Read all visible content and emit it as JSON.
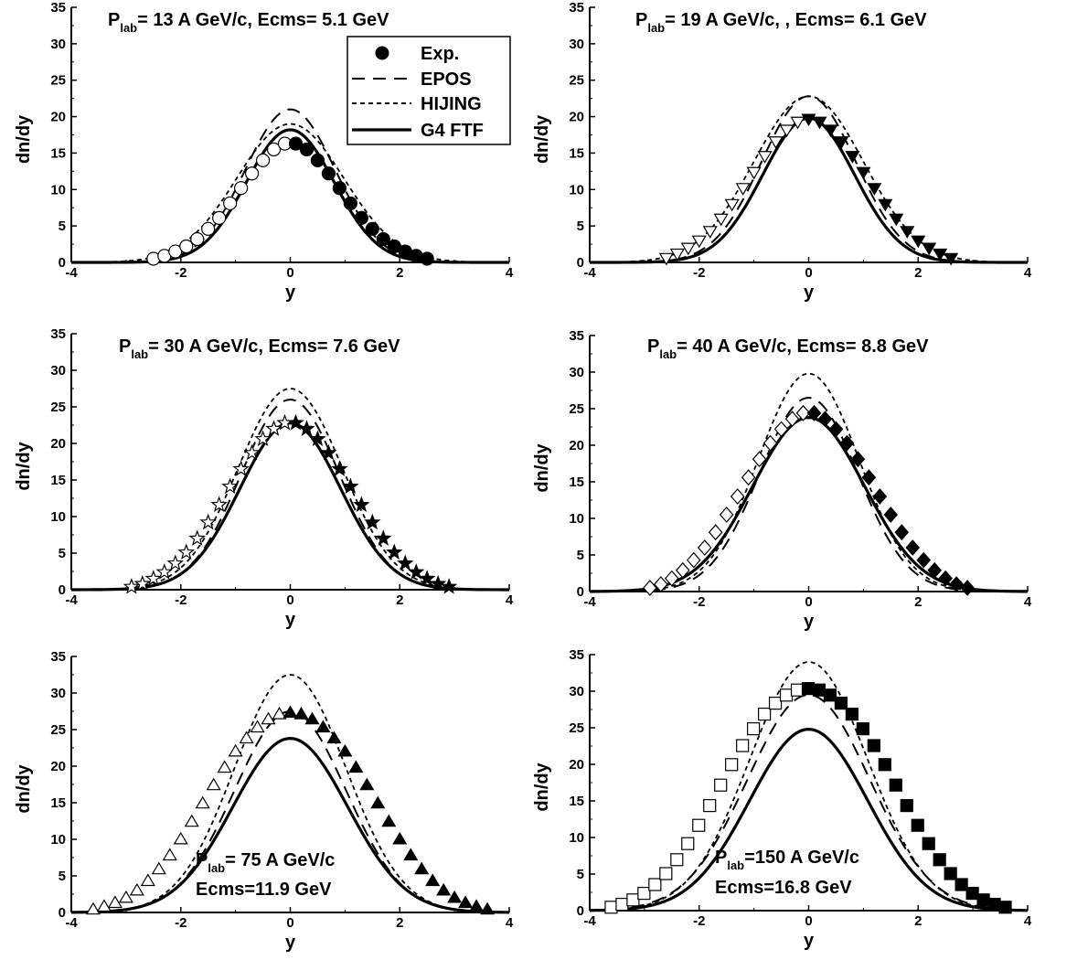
{
  "chart_data": [
    {
      "type": "line",
      "title_main": "P",
      "title_sub": "lab",
      "title_rest": "= 13 A GeV/c, Ecms= 5.1 GeV",
      "xlabel": "y",
      "ylabel": "dn/dy",
      "xlim": [
        -4,
        4
      ],
      "ylim": [
        0,
        35
      ],
      "xticks": [
        "-4",
        "-2",
        "0",
        "2",
        "4"
      ],
      "yticks": [
        "0",
        "5",
        "10",
        "15",
        "20",
        "25",
        "30",
        "35"
      ],
      "legend": {
        "placement": "top-right",
        "entries": [
          {
            "label": "Exp.",
            "style": "marker"
          },
          {
            "label": "EPOS",
            "style": "dashed"
          },
          {
            "label": "HIJING",
            "style": "dotted"
          },
          {
            "label": "G4 FTF",
            "style": "solid"
          }
        ]
      },
      "marker": "circle",
      "exp_points": [
        [
          -2.5,
          0.5
        ],
        [
          -2.3,
          0.9
        ],
        [
          -2.1,
          1.5
        ],
        [
          -1.9,
          2.2
        ],
        [
          -1.7,
          3.2
        ],
        [
          -1.5,
          4.6
        ],
        [
          -1.3,
          6.1
        ],
        [
          -1.1,
          8.1
        ],
        [
          -0.9,
          10.2
        ],
        [
          -0.7,
          12.2
        ],
        [
          -0.5,
          14.0
        ],
        [
          -0.3,
          15.5
        ],
        [
          -0.1,
          16.3
        ],
        [
          0.1,
          16.3
        ],
        [
          0.3,
          15.5
        ],
        [
          0.5,
          14.0
        ],
        [
          0.7,
          12.2
        ],
        [
          0.9,
          10.2
        ],
        [
          1.1,
          8.1
        ],
        [
          1.3,
          6.1
        ],
        [
          1.5,
          4.6
        ],
        [
          1.7,
          3.2
        ],
        [
          1.9,
          2.2
        ],
        [
          2.1,
          1.5
        ],
        [
          2.3,
          0.9
        ],
        [
          2.5,
          0.5
        ]
      ],
      "models": {
        "epos": {
          "peak": 21.0,
          "width": 0.82
        },
        "hijing": {
          "peak": 19.0,
          "width": 0.98
        },
        "ftf": {
          "peak": 18.2,
          "width": 0.8
        }
      }
    },
    {
      "type": "line",
      "title_main": "P",
      "title_sub": "lab",
      "title_rest": "= 19 A GeV/c, , Ecms= 6.1 GeV",
      "xlabel": "y",
      "ylabel": "dn/dy",
      "xlim": [
        -4,
        4
      ],
      "ylim": [
        0,
        35
      ],
      "xticks": [
        "-4",
        "-2",
        "0",
        "2",
        "4"
      ],
      "yticks": [
        "0",
        "5",
        "10",
        "15",
        "20",
        "25",
        "30",
        "35"
      ],
      "marker": "triangle-down",
      "exp_points": [
        [
          -2.6,
          0.6
        ],
        [
          -2.4,
          1.2
        ],
        [
          -2.2,
          2.0
        ],
        [
          -2.0,
          3.0
        ],
        [
          -1.8,
          4.3
        ],
        [
          -1.6,
          6.0
        ],
        [
          -1.4,
          8.0
        ],
        [
          -1.2,
          10.2
        ],
        [
          -1.0,
          12.4
        ],
        [
          -0.8,
          14.6
        ],
        [
          -0.6,
          16.6
        ],
        [
          -0.4,
          18.2
        ],
        [
          -0.2,
          19.3
        ],
        [
          0.0,
          19.7
        ],
        [
          0.2,
          19.3
        ],
        [
          0.4,
          18.2
        ],
        [
          0.6,
          16.6
        ],
        [
          0.8,
          14.6
        ],
        [
          1.0,
          12.4
        ],
        [
          1.2,
          10.2
        ],
        [
          1.4,
          8.0
        ],
        [
          1.6,
          6.0
        ],
        [
          1.8,
          4.3
        ],
        [
          2.0,
          3.0
        ],
        [
          2.2,
          2.0
        ],
        [
          2.4,
          1.2
        ],
        [
          2.6,
          0.6
        ]
      ],
      "models": {
        "epos": {
          "peak": 22.8,
          "width": 0.86
        },
        "hijing": {
          "peak": 22.8,
          "width": 1.0
        },
        "ftf": {
          "peak": 19.8,
          "width": 0.84
        }
      }
    },
    {
      "type": "line",
      "title_main": "P",
      "title_sub": "lab",
      "title_rest": "= 30 A GeV/c, Ecms= 7.6 GeV",
      "xlabel": "y",
      "ylabel": "dn/dy",
      "xlim": [
        -4,
        4
      ],
      "ylim": [
        0,
        35
      ],
      "xticks": [
        "-4",
        "-2",
        "0",
        "2",
        "4"
      ],
      "yticks": [
        "0",
        "5",
        "10",
        "15",
        "20",
        "25",
        "30",
        "35"
      ],
      "marker": "star",
      "exp_points": [
        [
          -2.9,
          0.4
        ],
        [
          -2.7,
          0.8
        ],
        [
          -2.5,
          1.5
        ],
        [
          -2.3,
          2.4
        ],
        [
          -2.1,
          3.6
        ],
        [
          -1.9,
          5.1
        ],
        [
          -1.7,
          7.0
        ],
        [
          -1.5,
          9.2
        ],
        [
          -1.3,
          11.6
        ],
        [
          -1.1,
          14.1
        ],
        [
          -0.9,
          16.5
        ],
        [
          -0.7,
          18.7
        ],
        [
          -0.5,
          20.6
        ],
        [
          -0.3,
          22.0
        ],
        [
          -0.1,
          22.8
        ],
        [
          0.1,
          22.8
        ],
        [
          0.3,
          22.0
        ],
        [
          0.5,
          20.6
        ],
        [
          0.7,
          18.7
        ],
        [
          0.9,
          16.5
        ],
        [
          1.1,
          14.1
        ],
        [
          1.3,
          11.6
        ],
        [
          1.5,
          9.2
        ],
        [
          1.7,
          7.0
        ],
        [
          1.9,
          5.1
        ],
        [
          2.1,
          3.6
        ],
        [
          2.3,
          2.4
        ],
        [
          2.5,
          1.5
        ],
        [
          2.7,
          0.8
        ],
        [
          2.9,
          0.4
        ]
      ],
      "models": {
        "epos": {
          "peak": 26.0,
          "width": 0.9
        },
        "hijing": {
          "peak": 27.5,
          "width": 0.95
        },
        "ftf": {
          "peak": 22.8,
          "width": 0.92
        }
      }
    },
    {
      "type": "line",
      "title_main": "P",
      "title_sub": "lab",
      "title_rest": "= 40 A GeV/c, Ecms= 8.8 GeV",
      "xlabel": "y",
      "ylabel": "dn/dy",
      "xlim": [
        -4,
        4
      ],
      "ylim": [
        0,
        35
      ],
      "xticks": [
        "-4",
        "-2",
        "0",
        "2",
        "4"
      ],
      "yticks": [
        "0",
        "5",
        "10",
        "15",
        "20",
        "25",
        "30",
        "35"
      ],
      "marker": "diamond",
      "exp_points": [
        [
          -2.9,
          0.5
        ],
        [
          -2.7,
          1.0
        ],
        [
          -2.5,
          1.8
        ],
        [
          -2.3,
          2.9
        ],
        [
          -2.1,
          4.3
        ],
        [
          -1.9,
          6.0
        ],
        [
          -1.7,
          8.1
        ],
        [
          -1.5,
          10.5
        ],
        [
          -1.3,
          13.0
        ],
        [
          -1.1,
          15.6
        ],
        [
          -0.9,
          18.1
        ],
        [
          -0.7,
          20.3
        ],
        [
          -0.5,
          22.2
        ],
        [
          -0.3,
          23.6
        ],
        [
          -0.1,
          24.4
        ],
        [
          0.1,
          24.4
        ],
        [
          0.3,
          23.6
        ],
        [
          0.5,
          22.2
        ],
        [
          0.7,
          20.3
        ],
        [
          0.9,
          18.1
        ],
        [
          1.1,
          15.6
        ],
        [
          1.3,
          13.0
        ],
        [
          1.5,
          10.5
        ],
        [
          1.7,
          8.1
        ],
        [
          1.9,
          6.0
        ],
        [
          2.1,
          4.3
        ],
        [
          2.3,
          2.9
        ],
        [
          2.5,
          1.8
        ],
        [
          2.7,
          1.0
        ],
        [
          2.9,
          0.5
        ]
      ],
      "models": {
        "epos": {
          "peak": 26.5,
          "width": 0.9
        },
        "hijing": {
          "peak": 29.8,
          "width": 0.92
        },
        "ftf": {
          "peak": 23.8,
          "width": 1.02
        }
      }
    },
    {
      "type": "line",
      "title_main": "P",
      "title_sub": "lab",
      "title_rest": "= 75 A GeV/c",
      "title_line2": "Ecms=11.9 GeV",
      "xlabel": "y",
      "ylabel": "dn/dy",
      "xlim": [
        -4,
        4
      ],
      "ylim": [
        0,
        35
      ],
      "xticks": [
        "-4",
        "-2",
        "0",
        "2",
        "4"
      ],
      "yticks": [
        "0",
        "5",
        "10",
        "15",
        "20",
        "25",
        "30",
        "35"
      ],
      "marker": "triangle-up",
      "exp_points": [
        [
          -3.6,
          0.4
        ],
        [
          -3.4,
          0.8
        ],
        [
          -3.2,
          1.3
        ],
        [
          -3.0,
          2.0
        ],
        [
          -2.8,
          3.0
        ],
        [
          -2.6,
          4.3
        ],
        [
          -2.4,
          5.9
        ],
        [
          -2.2,
          7.8
        ],
        [
          -2.0,
          10.0
        ],
        [
          -1.8,
          12.4
        ],
        [
          -1.6,
          14.9
        ],
        [
          -1.4,
          17.4
        ],
        [
          -1.2,
          19.8
        ],
        [
          -1.0,
          22.0
        ],
        [
          -0.8,
          23.8
        ],
        [
          -0.6,
          25.3
        ],
        [
          -0.4,
          26.4
        ],
        [
          -0.2,
          27.1
        ],
        [
          0.0,
          27.3
        ],
        [
          0.2,
          27.1
        ],
        [
          0.4,
          26.4
        ],
        [
          0.6,
          25.3
        ],
        [
          0.8,
          23.8
        ],
        [
          1.0,
          22.0
        ],
        [
          1.2,
          19.8
        ],
        [
          1.4,
          17.4
        ],
        [
          1.6,
          14.9
        ],
        [
          1.8,
          12.4
        ],
        [
          2.0,
          10.0
        ],
        [
          2.2,
          7.8
        ],
        [
          2.4,
          5.9
        ],
        [
          2.6,
          4.3
        ],
        [
          2.8,
          3.0
        ],
        [
          3.0,
          2.0
        ],
        [
          3.2,
          1.3
        ],
        [
          3.4,
          0.8
        ],
        [
          3.6,
          0.4
        ]
      ],
      "models": {
        "epos": {
          "peak": 27.5,
          "width": 1.02
        },
        "hijing": {
          "peak": 32.5,
          "width": 1.02
        },
        "ftf": {
          "peak": 23.8,
          "width": 1.05
        }
      }
    },
    {
      "type": "line",
      "title_main": "P",
      "title_sub": "lab",
      "title_rest": "=150 A GeV/c",
      "title_line2": "Ecms=16.8 GeV",
      "xlabel": "y",
      "ylabel": "dn/dy",
      "xlim": [
        -4,
        4
      ],
      "ylim": [
        0,
        35
      ],
      "xticks": [
        "-4",
        "-2",
        "0",
        "2",
        "4"
      ],
      "yticks": [
        "0",
        "5",
        "10",
        "15",
        "20",
        "25",
        "30",
        "35"
      ],
      "marker": "square",
      "exp_points": [
        [
          -3.6,
          0.4
        ],
        [
          -3.4,
          0.8
        ],
        [
          -3.2,
          1.4
        ],
        [
          -3.0,
          2.3
        ],
        [
          -2.8,
          3.5
        ],
        [
          -2.6,
          5.0
        ],
        [
          -2.4,
          6.9
        ],
        [
          -2.2,
          9.1
        ],
        [
          -2.0,
          11.6
        ],
        [
          -1.8,
          14.3
        ],
        [
          -1.6,
          17.1
        ],
        [
          -1.4,
          19.9
        ],
        [
          -1.2,
          22.5
        ],
        [
          -1.0,
          24.8
        ],
        [
          -0.8,
          26.8
        ],
        [
          -0.6,
          28.3
        ],
        [
          -0.4,
          29.4
        ],
        [
          -0.2,
          30.1
        ],
        [
          0.0,
          30.3
        ],
        [
          0.2,
          30.1
        ],
        [
          0.4,
          29.4
        ],
        [
          0.6,
          28.3
        ],
        [
          0.8,
          26.8
        ],
        [
          1.0,
          24.8
        ],
        [
          1.2,
          22.5
        ],
        [
          1.4,
          19.9
        ],
        [
          1.6,
          17.1
        ],
        [
          1.8,
          14.3
        ],
        [
          2.0,
          11.6
        ],
        [
          2.2,
          9.1
        ],
        [
          2.4,
          6.9
        ],
        [
          2.6,
          5.0
        ],
        [
          2.8,
          3.5
        ],
        [
          3.0,
          2.3
        ],
        [
          3.2,
          1.4
        ],
        [
          3.4,
          0.8
        ],
        [
          3.6,
          0.4
        ]
      ],
      "models": {
        "epos": {
          "peak": 29.5,
          "width": 1.12
        },
        "hijing": {
          "peak": 34.0,
          "width": 1.08
        },
        "ftf": {
          "peak": 24.8,
          "width": 1.08
        }
      }
    }
  ]
}
